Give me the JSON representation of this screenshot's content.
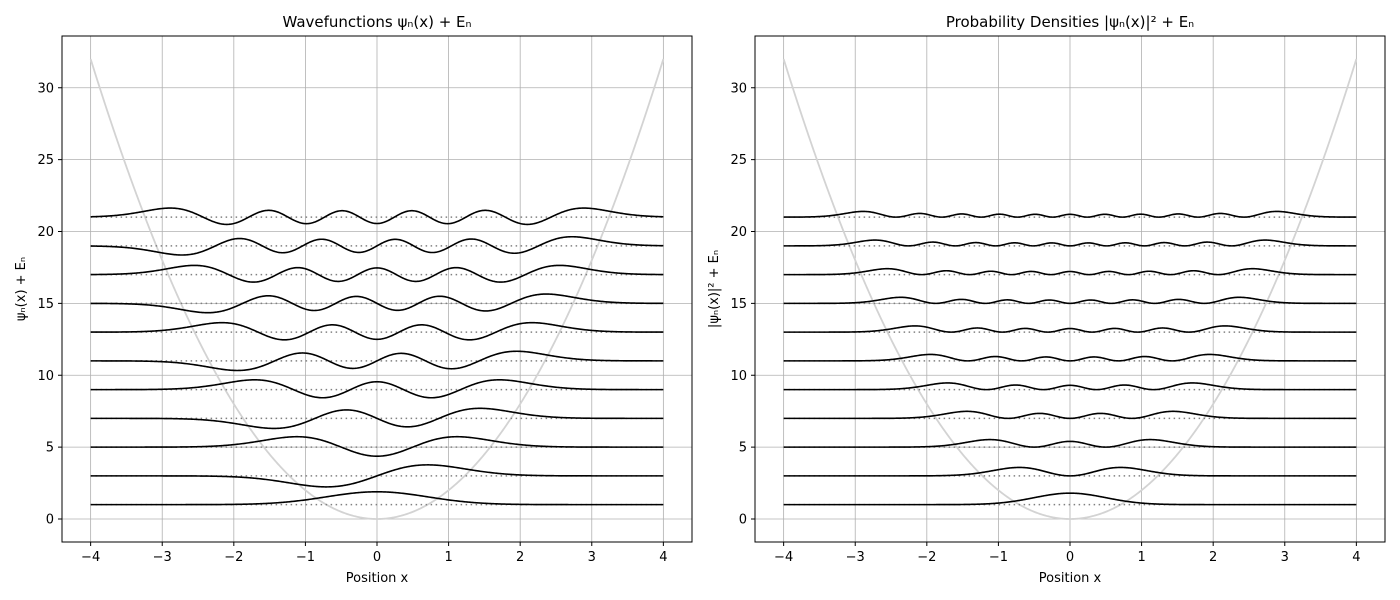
{
  "chart_data": [
    {
      "type": "line",
      "title": "Wavefunctions ψₙ(x) + Eₙ",
      "xlabel": "Position x",
      "ylabel": "ψₙ(x) + Eₙ",
      "xlim": [
        -4.4,
        4.4
      ],
      "ylim": [
        -1.6,
        33.6
      ],
      "x_ticks": [
        -4,
        -3,
        -2,
        -1,
        0,
        1,
        2,
        3,
        4
      ],
      "y_ticks": [
        0,
        5,
        10,
        15,
        20,
        25,
        30
      ],
      "grid": true,
      "x_range": [
        -4,
        4
      ],
      "potential": {
        "formula": "V(x) = 2x²",
        "color": "#d3d3d3"
      },
      "energy_levels": [
        1,
        3,
        5,
        7,
        9,
        11,
        13,
        15,
        17,
        19,
        21
      ],
      "quantity": "wavefunction",
      "line_color": "#000000",
      "level_line_color": "#808080"
    },
    {
      "type": "line",
      "title": "Probability Densities |ψₙ(x)|² + Eₙ",
      "xlabel": "Position x",
      "ylabel": "|ψₙ(x)|² + Eₙ",
      "xlim": [
        -4.4,
        4.4
      ],
      "ylim": [
        -1.6,
        33.6
      ],
      "x_ticks": [
        -4,
        -3,
        -2,
        -1,
        0,
        1,
        2,
        3,
        4
      ],
      "y_ticks": [
        0,
        5,
        10,
        15,
        20,
        25,
        30
      ],
      "grid": true,
      "x_range": [
        -4,
        4
      ],
      "potential": {
        "formula": "V(x) = 2x²",
        "color": "#d3d3d3"
      },
      "energy_levels": [
        1,
        3,
        5,
        7,
        9,
        11,
        13,
        15,
        17,
        19,
        21
      ],
      "quantity": "probability_density",
      "line_color": "#000000",
      "level_line_color": "#808080"
    }
  ]
}
